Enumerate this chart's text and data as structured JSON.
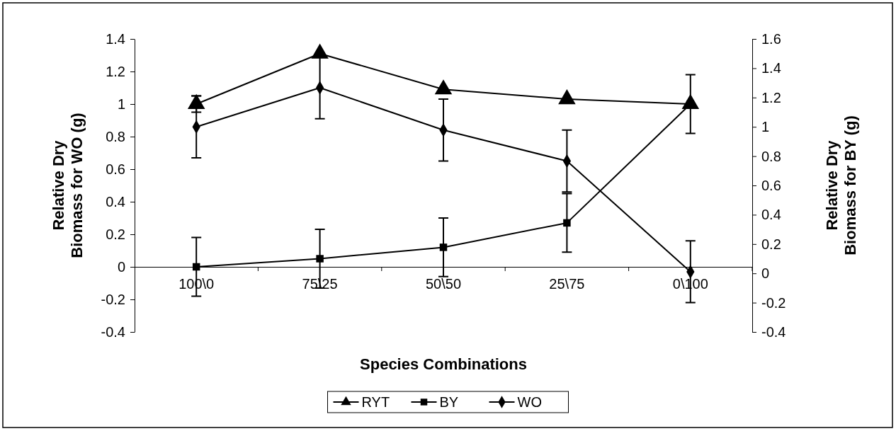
{
  "chart_data": {
    "type": "line",
    "xlabel": "Species Combinations",
    "ylabel": "Relative Dry Biomass for WO (g)",
    "y2label": "Relative Dry Biomass for BY (g)",
    "categories": [
      "100\\0",
      "75\\25",
      "50\\50",
      "25\\75",
      "0\\100"
    ],
    "series": [
      {
        "name": "RYT",
        "color": "#000000",
        "marker": "triangle",
        "values": [
          1.0,
          1.31,
          1.09,
          1.03,
          1.0
        ],
        "errors": [
          0.05,
          null,
          null,
          null,
          null
        ]
      },
      {
        "name": "BY",
        "color": "#000000",
        "marker": "square",
        "values": [
          0,
          0.05,
          0.12,
          0.27,
          1.0
        ],
        "errors": [
          0.18,
          0.18,
          0.18,
          0.18,
          0.18
        ]
      },
      {
        "name": "WO",
        "color": "#000000",
        "marker": "diamond",
        "values": [
          0.86,
          1.1,
          0.84,
          0.65,
          -0.03
        ],
        "errors": [
          0.19,
          0.19,
          0.19,
          0.19,
          0.19
        ]
      }
    ],
    "ylim": [
      -0.4,
      1.4
    ],
    "yticks": [
      -0.4,
      -0.2,
      0,
      0.2,
      0.4,
      0.6,
      0.8,
      1,
      1.2,
      1.4
    ],
    "y2lim": [
      -0.4,
      1.6
    ],
    "y2ticks": [
      -0.4,
      -0.2,
      0,
      0.2,
      0.4,
      0.6,
      0.8,
      1,
      1.2,
      1.4,
      1.6
    ],
    "legend": "bottom",
    "grid": false
  }
}
